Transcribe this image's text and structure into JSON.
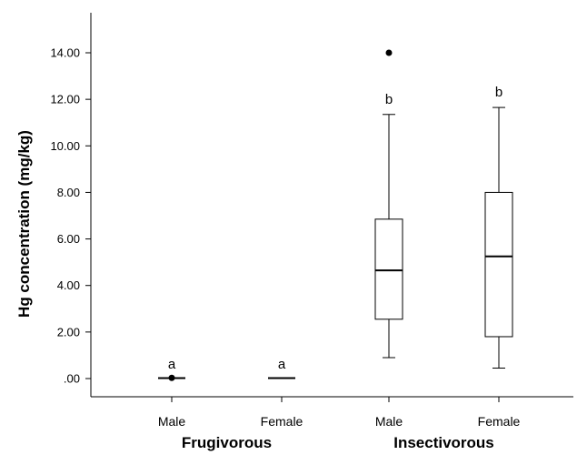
{
  "chart_data": {
    "type": "box",
    "ylabel": "Hg concentration (mg/kg)",
    "ylim": [
      -0.8,
      15.8
    ],
    "yticks": [
      0,
      2,
      4,
      6,
      8,
      10,
      12,
      14
    ],
    "ytick_labels": [
      ".00",
      "2.00",
      "4.00",
      "6.00",
      "8.00",
      "10.00",
      "12.00",
      "14.00"
    ],
    "groups": [
      {
        "label": "Frugivorous"
      },
      {
        "label": "Insectivorous"
      }
    ],
    "boxes": [
      {
        "group": "Frugivorous",
        "category": "Male",
        "min": 0.02,
        "q1": 0.02,
        "median": 0.02,
        "q3": 0.02,
        "max": 0.02,
        "outliers": [
          0.03
        ],
        "sig": "a"
      },
      {
        "group": "Frugivorous",
        "category": "Female",
        "min": 0.02,
        "q1": 0.02,
        "median": 0.02,
        "q3": 0.02,
        "max": 0.02,
        "outliers": [],
        "sig": "a"
      },
      {
        "group": "Insectivorous",
        "category": "Male",
        "min": 0.9,
        "q1": 2.55,
        "median": 4.65,
        "q3": 6.85,
        "max": 11.35,
        "outliers": [
          14.0
        ],
        "sig": "b"
      },
      {
        "group": "Insectivorous",
        "category": "Female",
        "min": 0.45,
        "q1": 1.8,
        "median": 5.25,
        "q3": 8.0,
        "max": 11.65,
        "outliers": [],
        "sig": "b"
      }
    ],
    "grid": false,
    "legend": "none"
  }
}
